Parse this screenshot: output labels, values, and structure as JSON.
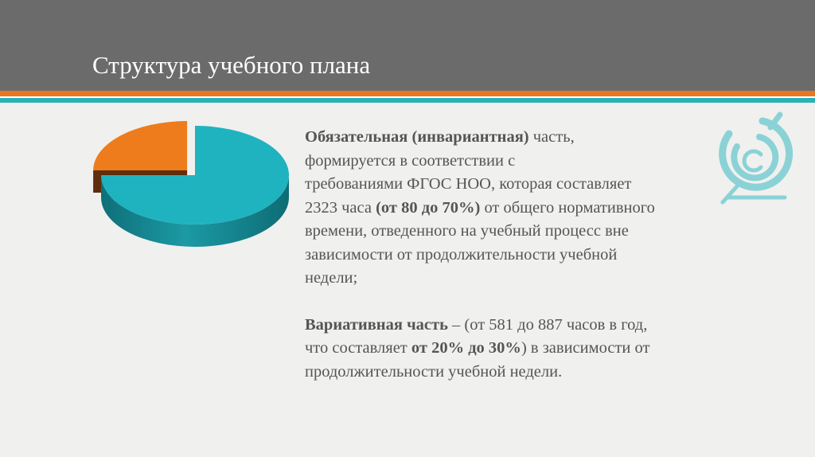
{
  "slide": {
    "title": "Структура учебного плана"
  },
  "colors": {
    "header": "#6b6b6b",
    "accent_orange": "#e87722",
    "accent_teal": "#2bb0b8",
    "pie_teal": "#1fb3bf",
    "pie_orange": "#ee7c1c",
    "text": "#555555"
  },
  "chart_data": {
    "type": "pie",
    "style": "3d-exploded",
    "slices": [
      {
        "value": 75
      },
      {
        "value": 25
      }
    ]
  },
  "paragraph1": {
    "lead": "Обязательная (инвариантная)",
    "line1_rest": " часть,",
    "line2": "формируется в соответствии с",
    "line3": "требованиями  ФГОС НОО, которая  составляет",
    "line4_start": "2323 часа ",
    "line4_bold": "(от 80 до 70%)",
    "line4_end": " от общего нормативного",
    "line5": "времени, отведенного на учебный процесс вне",
    "line6": "зависимости  от продолжительности учебной",
    "line7": "недели;"
  },
  "paragraph2": {
    "lead": "Вариативная часть",
    "line1_rest": " – (от 581 до 887 часов в год,",
    "line2_start": "что составляет ",
    "line2_bold": "от 20% до 30%",
    "line2_end": ") в зависимости от",
    "line3": "продолжительности  учебной недели."
  },
  "logo": {
    "icon": "ngos-c-logo-icon"
  }
}
